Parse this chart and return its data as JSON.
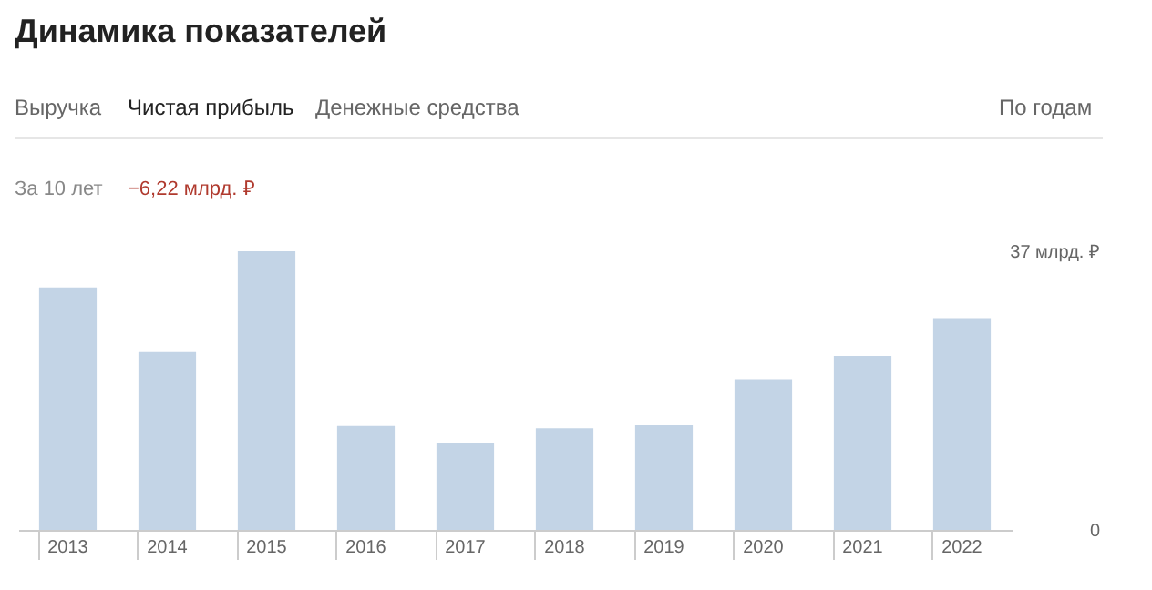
{
  "chart_data": {
    "type": "bar",
    "title": "Динамика показателей",
    "categories": [
      "2013",
      "2014",
      "2015",
      "2016",
      "2017",
      "2018",
      "2019",
      "2020",
      "2021",
      "2022"
    ],
    "values": [
      32.2,
      23.6,
      37,
      13.8,
      11.5,
      13.5,
      13.9,
      20.0,
      23.1,
      28.1
    ],
    "color": "#c3d4e6",
    "ylim": [
      0,
      37
    ],
    "yticks": [
      0,
      {
        "value": 37,
        "label": "37 млрд. ₽"
      }
    ],
    "grid": false,
    "annotations": [
      "Выручка",
      "Чистая прибыль",
      "Денежные средства",
      "По годам",
      "За 10 лет",
      "−6,22 млрд. ₽"
    ]
  }
}
